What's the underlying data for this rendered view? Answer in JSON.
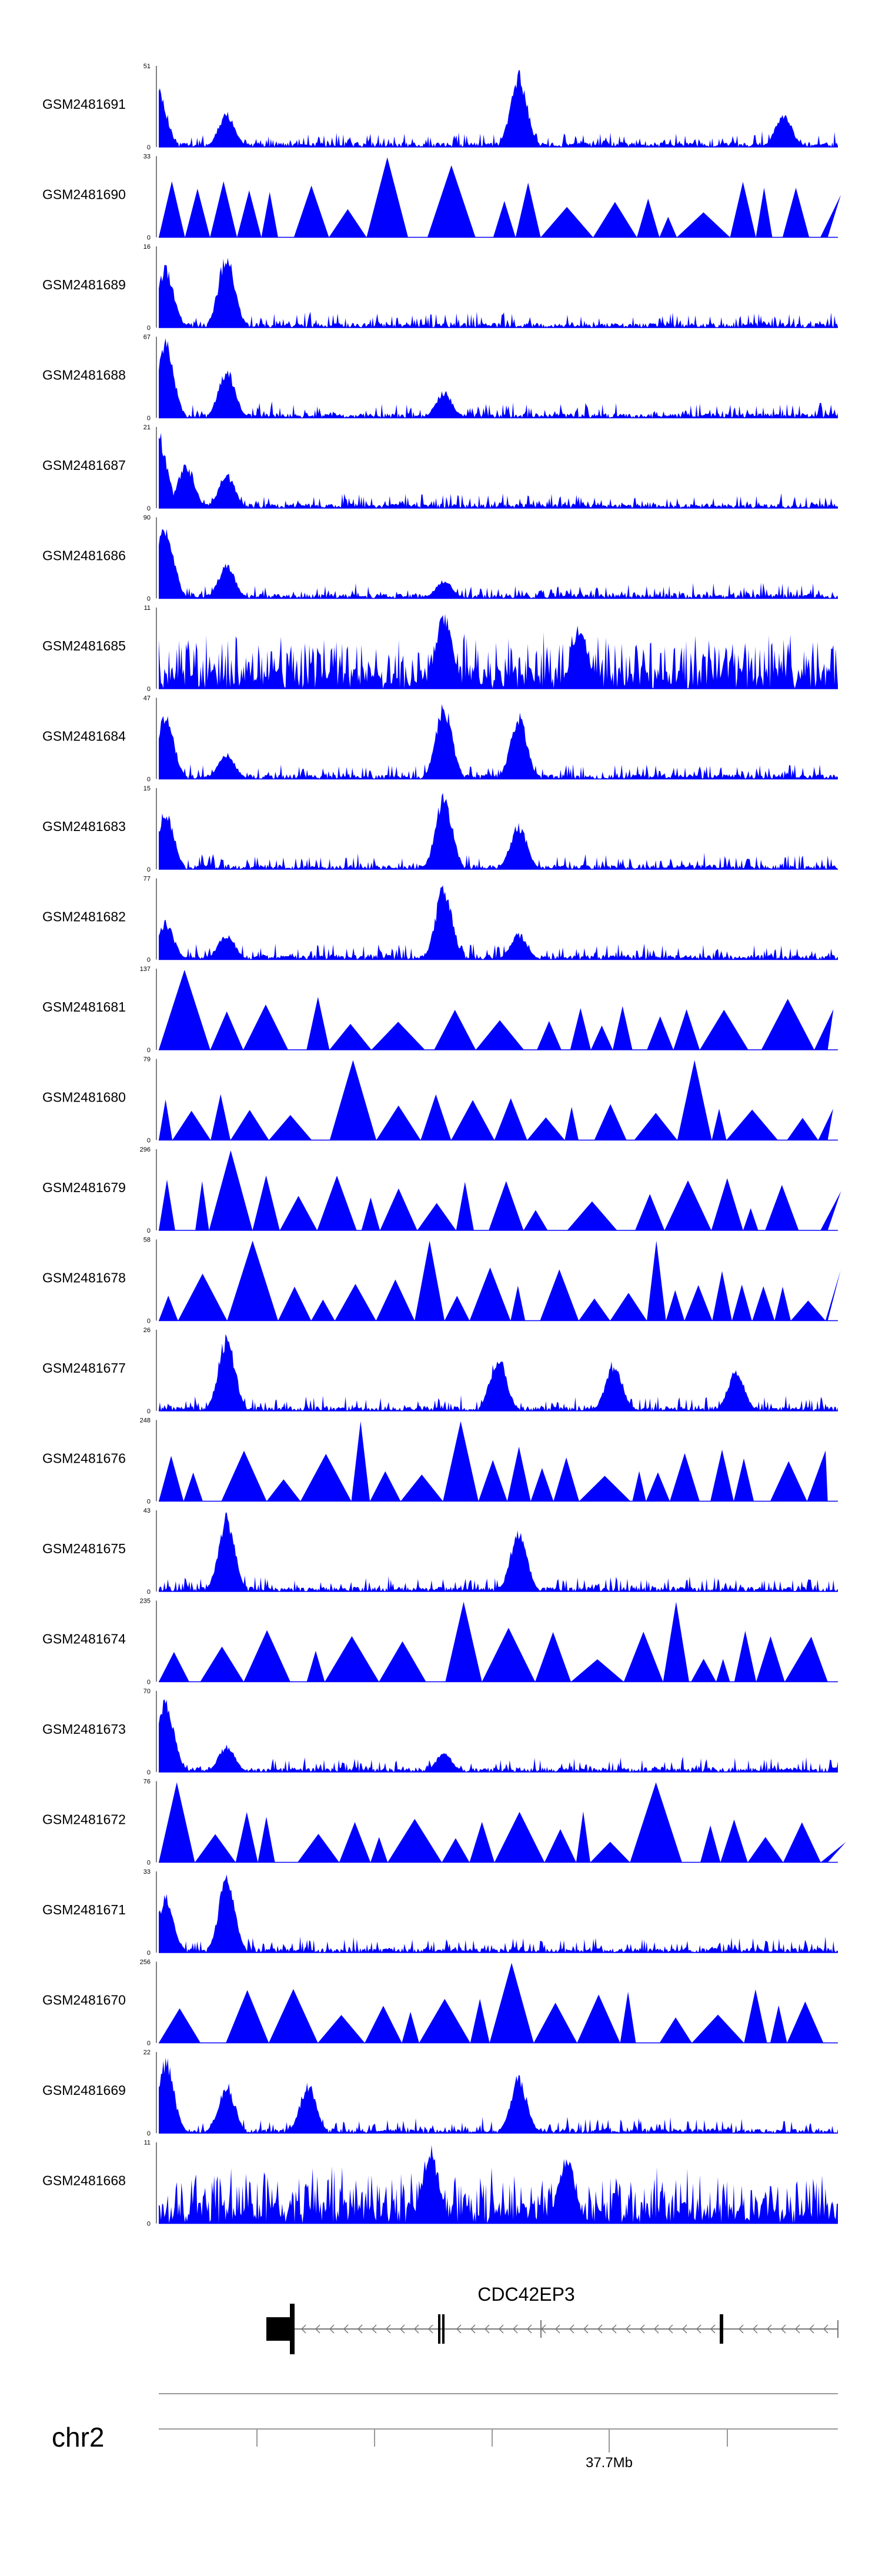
{
  "chart_data": {
    "type": "area",
    "title": "",
    "color": "#0000FF",
    "tracks": [
      {
        "name": "GSM2481691",
        "max": "51",
        "pattern": "peaky",
        "peaks": [
          [
            0.0,
            0.75
          ],
          [
            0.1,
            0.45
          ],
          [
            0.53,
            1.0
          ],
          [
            0.92,
            0.45
          ]
        ]
      },
      {
        "name": "GSM2481690",
        "max": "33",
        "pattern": "tri",
        "peaks": [
          [
            0.02,
            0.7
          ],
          [
            0.1,
            0.7
          ],
          [
            0.34,
            1.0
          ],
          [
            0.47,
            0.9
          ]
        ]
      },
      {
        "name": "GSM2481689",
        "max": "16",
        "pattern": "peaky",
        "peaks": [
          [
            0.01,
            0.8
          ],
          [
            0.1,
            1.0
          ]
        ]
      },
      {
        "name": "GSM2481688",
        "max": "67",
        "pattern": "peaky",
        "peaks": [
          [
            0.01,
            1.0
          ],
          [
            0.1,
            0.65
          ],
          [
            0.42,
            0.35
          ]
        ]
      },
      {
        "name": "GSM2481687",
        "max": "21",
        "pattern": "peaky",
        "peaks": [
          [
            0.0,
            1.0
          ],
          [
            0.04,
            0.6
          ],
          [
            0.1,
            0.45
          ]
        ]
      },
      {
        "name": "GSM2481686",
        "max": "90",
        "pattern": "peaky",
        "peaks": [
          [
            0.01,
            1.0
          ],
          [
            0.1,
            0.45
          ],
          [
            0.42,
            0.25
          ]
        ]
      },
      {
        "name": "GSM2481685",
        "max": "11",
        "pattern": "dense",
        "peaks": [
          [
            0.42,
            1.0
          ],
          [
            0.62,
            0.85
          ]
        ]
      },
      {
        "name": "GSM2481684",
        "max": "47",
        "pattern": "peaky",
        "peaks": [
          [
            0.01,
            0.9
          ],
          [
            0.1,
            0.35
          ],
          [
            0.42,
            1.0
          ],
          [
            0.53,
            0.85
          ]
        ]
      },
      {
        "name": "GSM2481683",
        "max": "15",
        "pattern": "peaky",
        "peaks": [
          [
            0.01,
            0.8
          ],
          [
            0.42,
            1.0
          ],
          [
            0.53,
            0.6
          ]
        ]
      },
      {
        "name": "GSM2481682",
        "max": "77",
        "pattern": "peaky",
        "peaks": [
          [
            0.01,
            0.5
          ],
          [
            0.1,
            0.35
          ],
          [
            0.42,
            1.0
          ],
          [
            0.53,
            0.35
          ]
        ]
      },
      {
        "name": "GSM2481681",
        "max": "137",
        "pattern": "tri",
        "peaks": [
          [
            0.01,
            1.0
          ],
          [
            0.18,
            0.5
          ],
          [
            0.42,
            0.5
          ],
          [
            0.62,
            0.5
          ],
          [
            0.82,
            0.5
          ]
        ]
      },
      {
        "name": "GSM2481680",
        "max": "79",
        "pattern": "tri",
        "peaks": [
          [
            0.27,
            1.0
          ],
          [
            0.8,
            1.0
          ],
          [
            0.47,
            0.5
          ]
        ]
      },
      {
        "name": "GSM2481679",
        "max": "296",
        "pattern": "tri",
        "peaks": [
          [
            0.1,
            1.0
          ],
          [
            0.22,
            0.15
          ],
          [
            0.6,
            0.1
          ]
        ]
      },
      {
        "name": "GSM2481678",
        "max": "58",
        "pattern": "tri",
        "peaks": [
          [
            0.16,
            1.0
          ],
          [
            0.4,
            1.0
          ],
          [
            0.73,
            1.0
          ]
        ]
      },
      {
        "name": "GSM2481677",
        "max": "26",
        "pattern": "peaky",
        "peaks": [
          [
            0.1,
            1.0
          ],
          [
            0.5,
            0.75
          ],
          [
            0.67,
            0.65
          ],
          [
            0.85,
            0.55
          ]
        ]
      },
      {
        "name": "GSM2481676",
        "max": "248",
        "pattern": "tri",
        "peaks": [
          [
            0.02,
            0.5
          ],
          [
            0.3,
            1.0
          ],
          [
            0.45,
            1.0
          ],
          [
            0.9,
            0.5
          ]
        ]
      },
      {
        "name": "GSM2481675",
        "max": "43",
        "pattern": "peaky",
        "peaks": [
          [
            0.1,
            1.0
          ],
          [
            0.53,
            0.8
          ]
        ]
      },
      {
        "name": "GSM2481674",
        "max": "235",
        "pattern": "tri",
        "peaks": [
          [
            0.3,
            0.5
          ],
          [
            0.46,
            1.0
          ],
          [
            0.76,
            1.0
          ],
          [
            0.97,
            0.5
          ]
        ]
      },
      {
        "name": "GSM2481673",
        "max": "70",
        "pattern": "peaky",
        "peaks": [
          [
            0.01,
            1.0
          ],
          [
            0.1,
            0.35
          ],
          [
            0.42,
            0.25
          ]
        ]
      },
      {
        "name": "GSM2481672",
        "max": "76",
        "pattern": "tri",
        "peaks": [
          [
            0.02,
            1.0
          ],
          [
            0.74,
            1.0
          ],
          [
            0.94,
            0.5
          ]
        ]
      },
      {
        "name": "GSM2481671",
        "max": "33",
        "pattern": "peaky",
        "peaks": [
          [
            0.01,
            0.75
          ],
          [
            0.1,
            1.0
          ]
        ]
      },
      {
        "name": "GSM2481670",
        "max": "256",
        "pattern": "tri",
        "peaks": [
          [
            0.43,
            0.55
          ],
          [
            0.47,
            0.55
          ],
          [
            0.51,
            1.0
          ],
          [
            0.66,
            0.5
          ]
        ]
      },
      {
        "name": "GSM2481669",
        "max": "22",
        "pattern": "peaky",
        "peaks": [
          [
            0.01,
            1.0
          ],
          [
            0.1,
            0.65
          ],
          [
            0.22,
            0.65
          ],
          [
            0.53,
            0.75
          ]
        ]
      },
      {
        "name": "GSM2481668",
        "max": "11",
        "pattern": "dense",
        "peaks": [
          [
            0.4,
            1.0
          ],
          [
            0.6,
            0.9
          ]
        ]
      }
    ],
    "gene": {
      "name": "CDC42EP3",
      "strand": "-",
      "exons": [
        [
          0.16,
          0.195
        ],
        [
          0.42,
          0.428
        ],
        [
          0.43,
          0.436
        ],
        [
          0.84,
          0.846
        ]
      ]
    },
    "chromosome": "chr2",
    "coordinate_label": "37.7Mb"
  }
}
